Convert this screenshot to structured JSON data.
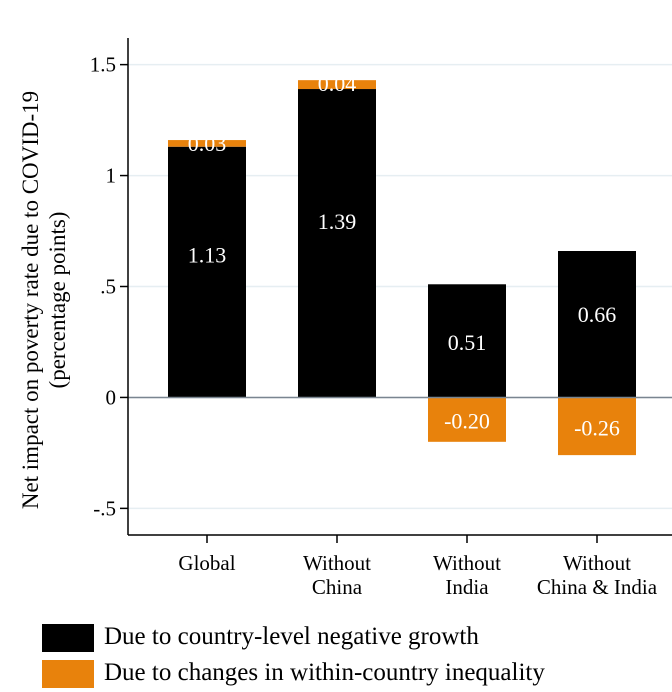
{
  "chart_data": {
    "type": "bar",
    "stacked": true,
    "categories": [
      [
        "Global"
      ],
      [
        "Without",
        "China"
      ],
      [
        "Without",
        "India"
      ],
      [
        "Without",
        "China & India"
      ]
    ],
    "series": [
      {
        "name": "Due to country-level negative growth",
        "color": "#000000",
        "label_color": "#ffffff",
        "values": [
          1.13,
          1.39,
          0.51,
          0.66
        ]
      },
      {
        "name": "Due to changes in within-country inequality",
        "color": "#e8820c",
        "label_color": "#ffffff",
        "values": [
          0.03,
          0.04,
          -0.2,
          -0.26
        ]
      }
    ],
    "data_labels": [
      [
        "1.13",
        "1.39",
        "0.51",
        "0.66"
      ],
      [
        "0.03",
        "0.04",
        "-0.20",
        "-0.26"
      ]
    ],
    "ylabel": [
      "Net impact on poverty rate due to COVID-19",
      "(percentage points)"
    ],
    "xlabel": "",
    "ylim": [
      -0.62,
      1.62
    ],
    "yticks": [
      -0.5,
      0,
      0.5,
      1,
      1.5
    ],
    "ytick_labels": [
      "-.5",
      "0",
      ".5",
      "1",
      "1.5"
    ],
    "grid": true,
    "legend_position": "bottom-left"
  }
}
